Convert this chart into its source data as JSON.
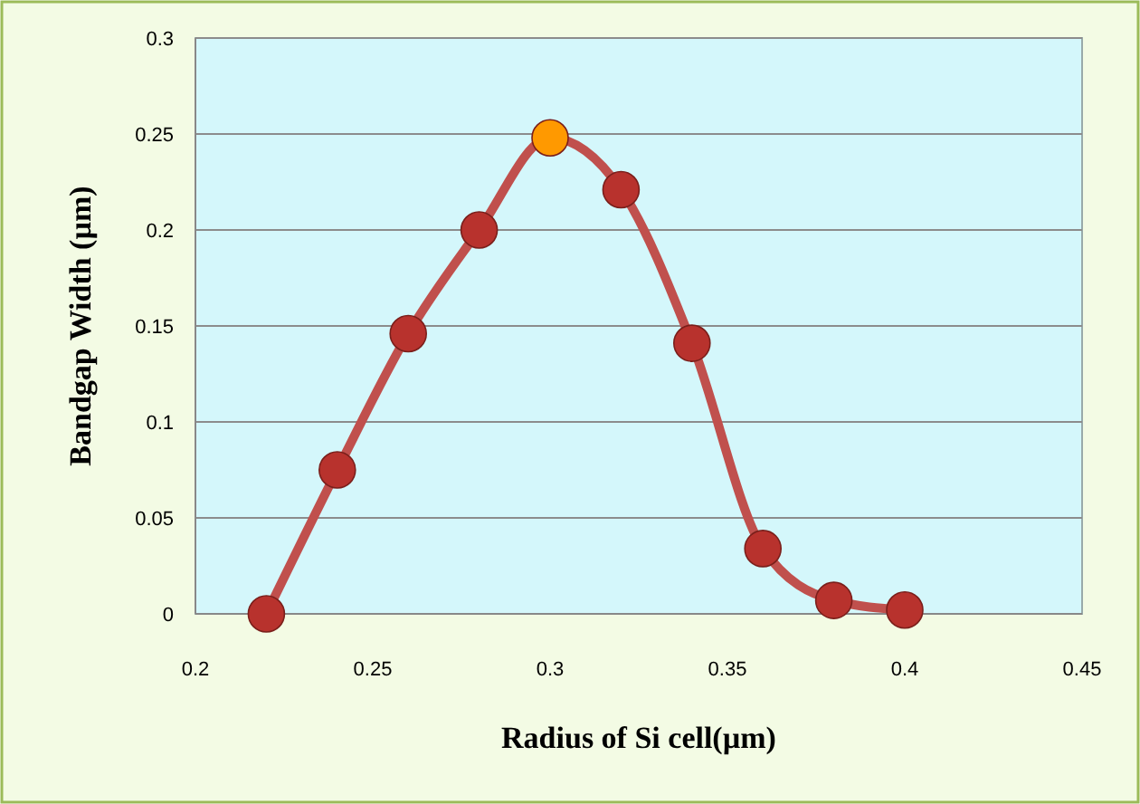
{
  "chart_data": {
    "type": "line",
    "xlabel": "Radius of Si cell(µm)",
    "ylabel": "Bandgap Width (µm)",
    "x": [
      0.22,
      0.24,
      0.26,
      0.28,
      0.3,
      0.32,
      0.34,
      0.36,
      0.38,
      0.4
    ],
    "series": [
      {
        "color": "#c0504d",
        "colors": [
          "#b8322d",
          "#b8322d",
          "#b8322d",
          "#b8322d",
          "#ff9900",
          "#b8322d",
          "#b8322d",
          "#b8322d",
          "#b8322d",
          "#b8322d"
        ],
        "values": [
          0,
          0.075,
          0.146,
          0.2,
          0.248,
          0.221,
          0.141,
          0.034,
          0.007,
          0.002
        ]
      }
    ],
    "xlim": [
      0.2,
      0.45
    ],
    "xticks": [
      0.2,
      0.25,
      0.3,
      0.35,
      0.4,
      0.45
    ],
    "ylim": [
      0,
      0.3
    ],
    "yticks": [
      0,
      0.05,
      0.1,
      0.15,
      0.2,
      0.25,
      0.3
    ],
    "grid": "y",
    "marker": "circle",
    "line_style": "solid"
  }
}
